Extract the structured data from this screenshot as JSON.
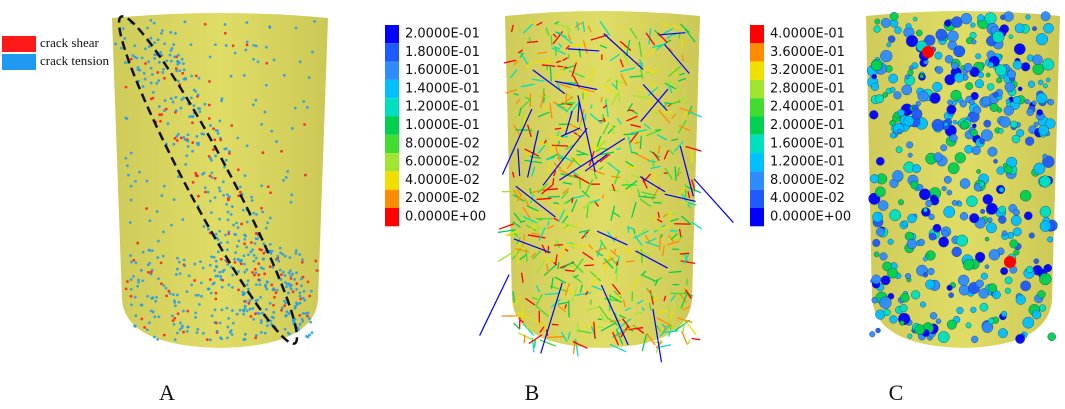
{
  "panels": [
    {
      "label": "A",
      "legend": [
        {
          "name": "crack shear",
          "color": "#ff1a1a"
        },
        {
          "name": "crack tension",
          "color": "#1e9bf0"
        }
      ]
    },
    {
      "label": "B",
      "colorbar": {
        "labels": [
          "2.0000E-01",
          "1.8000E-01",
          "1.6000E-01",
          "1.4000E-01",
          "1.2000E-01",
          "1.0000E-01",
          "8.0000E-02",
          "6.0000E-02",
          "4.0000E-02",
          "2.0000E-02",
          "0.0000E+00"
        ],
        "colors": [
          "#0000ff",
          "#1e5aff",
          "#2f8cff",
          "#00c0ff",
          "#00e0c0",
          "#00d050",
          "#40dc30",
          "#a0e630",
          "#f0e000",
          "#ff8c00",
          "#ff0000"
        ]
      }
    },
    {
      "label": "C",
      "colorbar": {
        "labels": [
          "4.0000E-01",
          "3.6000E-01",
          "3.2000E-01",
          "2.8000E-01",
          "2.4000E-01",
          "2.0000E-01",
          "1.6000E-01",
          "1.2000E-01",
          "8.0000E-02",
          "4.0000E-02",
          "0.0000E+00"
        ],
        "colors": [
          "#ff0000",
          "#ff8c00",
          "#f0e000",
          "#a0e630",
          "#40dc30",
          "#00d050",
          "#00e0c0",
          "#00c0ff",
          "#2f8cff",
          "#1e5aff",
          "#0000ff"
        ]
      }
    }
  ]
}
